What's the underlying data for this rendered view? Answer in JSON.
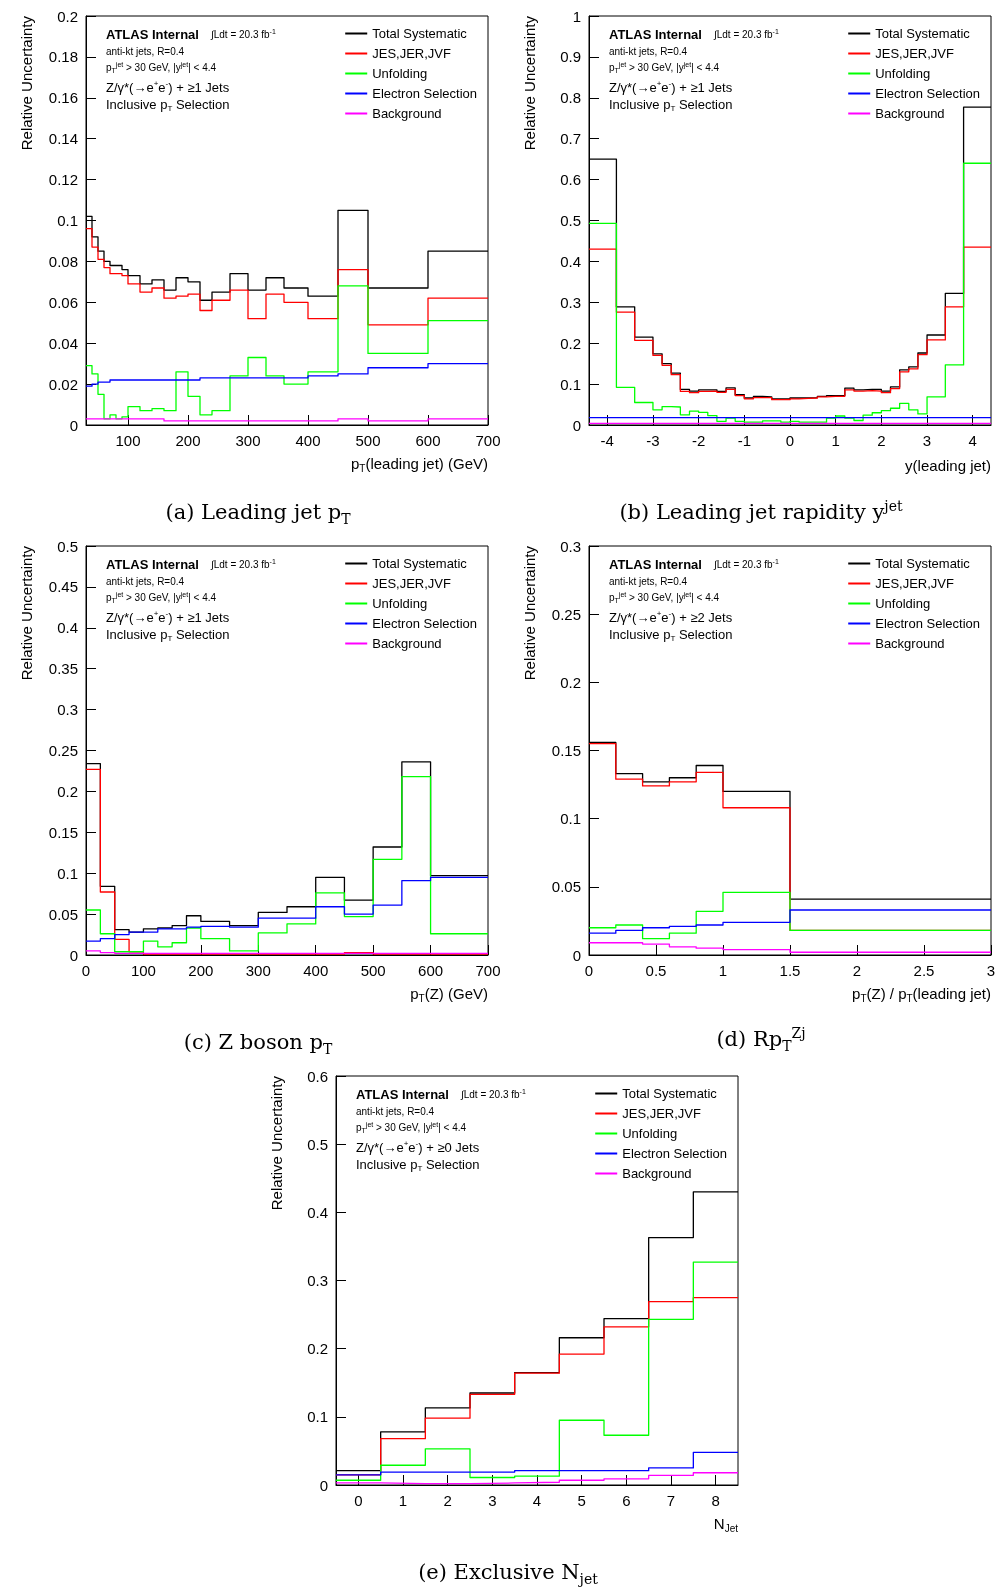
{
  "chart_data": [
    {
      "type": "histogram",
      "title": "(a) Leading jet p$_{T}$",
      "xlabel": "p$_{T}$(leading jet) (GeV)",
      "ylabel": "Relative Uncertainty",
      "legend": "top right",
      "annotations": [
        "ATLAS Internal",
        "∫Ldt = 20.3 fb$^{-1}$",
        "anti-kt jets, R=0.4",
        "p$_{T}$$^{jet}$ > 30 GeV, |y$^{jet}$| < 4.4",
        "Z/γ*(→e$^{+}$e$^{-}$) + ≥1 Jets",
        "Inclusive p$_{T}$ Selection"
      ],
      "bins": [
        30,
        40,
        50,
        60,
        70,
        80,
        90,
        100,
        120,
        140,
        160,
        180,
        200,
        220,
        240,
        270,
        300,
        330,
        360,
        400,
        450,
        500,
        600,
        700
      ],
      "series": [
        {
          "name": "Total Systematic",
          "color": "#000000",
          "values": [
            0.102,
            0.092,
            0.085,
            0.08,
            0.078,
            0.078,
            0.076,
            0.073,
            0.069,
            0.071,
            0.066,
            0.072,
            0.07,
            0.061,
            0.065,
            0.074,
            0.066,
            0.072,
            0.067,
            0.063,
            0.105,
            0.067,
            0.085
          ]
        },
        {
          "name": "JES,JER,JVF",
          "color": "#ff0000",
          "values": [
            0.096,
            0.087,
            0.081,
            0.077,
            0.074,
            0.074,
            0.073,
            0.069,
            0.065,
            0.067,
            0.062,
            0.063,
            0.064,
            0.056,
            0.061,
            0.066,
            0.052,
            0.064,
            0.06,
            0.052,
            0.076,
            0.049,
            0.062
          ]
        },
        {
          "name": "Unfolding",
          "color": "#00ff00",
          "values": [
            0.029,
            0.025,
            0.015,
            0.003,
            0.005,
            0.003,
            0.004,
            0.009,
            0.007,
            0.008,
            0.007,
            0.026,
            0.014,
            0.005,
            0.007,
            0.024,
            0.033,
            0.024,
            0.02,
            0.026,
            0.068,
            0.035,
            0.051
          ]
        },
        {
          "name": "Electron Selection",
          "color": "#0000ff",
          "values": [
            0.019,
            0.02,
            0.021,
            0.021,
            0.022,
            0.022,
            0.022,
            0.022,
            0.022,
            0.022,
            0.022,
            0.022,
            0.022,
            0.023,
            0.023,
            0.023,
            0.023,
            0.023,
            0.023,
            0.024,
            0.025,
            0.028,
            0.03
          ]
        },
        {
          "name": "Background",
          "color": "#ff00ff",
          "values": [
            0.003,
            0.003,
            0.003,
            0.003,
            0.003,
            0.003,
            0.003,
            0.003,
            0.003,
            0.003,
            0.002,
            0.002,
            0.002,
            0.002,
            0.002,
            0.002,
            0.002,
            0.002,
            0.002,
            0.002,
            0.003,
            0.002,
            0.003
          ]
        }
      ],
      "xlim": [
        30,
        700
      ],
      "xticks": [
        100,
        200,
        300,
        400,
        500,
        600,
        700
      ],
      "ylim": [
        0,
        0.2
      ],
      "yticks": [
        0,
        0.02,
        0.04,
        0.06,
        0.08,
        0.1,
        0.12,
        0.14,
        0.16,
        0.18,
        0.2
      ]
    },
    {
      "type": "histogram",
      "title": "(b) Leading jet rapidity y$^{jet}$",
      "xlabel": "y(leading jet)",
      "ylabel": "Relative Uncertainty",
      "legend": "top right",
      "annotations": [
        "ATLAS Internal",
        "∫Ldt = 20.3 fb$^{-1}$",
        "anti-kt jets, R=0.4",
        "p$_{T}$$^{jet}$ > 30 GeV, |y$^{jet}$| < 4.4",
        "Z/γ*(→e$^{+}$e$^{-}$) + ≥1 Jets",
        "Inclusive p$_{T}$ Selection"
      ],
      "bins": [
        -4.4,
        -3.8,
        -3.4,
        -3.0,
        -2.8,
        -2.6,
        -2.4,
        -2.2,
        -2.0,
        -1.8,
        -1.6,
        -1.4,
        -1.2,
        -1.0,
        -0.8,
        -0.6,
        -0.4,
        -0.2,
        0,
        0.2,
        0.4,
        0.6,
        0.8,
        1.0,
        1.2,
        1.4,
        1.6,
        1.8,
        2.0,
        2.2,
        2.4,
        2.6,
        2.8,
        3.0,
        3.4,
        3.8,
        4.4
      ],
      "series": [
        {
          "name": "Total Systematic",
          "color": "#000000",
          "values": [
            0.65,
            0.289,
            0.215,
            0.174,
            0.15,
            0.127,
            0.087,
            0.083,
            0.086,
            0.086,
            0.082,
            0.091,
            0.074,
            0.066,
            0.07,
            0.069,
            0.064,
            0.064,
            0.066,
            0.066,
            0.067,
            0.07,
            0.072,
            0.072,
            0.09,
            0.086,
            0.087,
            0.087,
            0.083,
            0.093,
            0.135,
            0.142,
            0.176,
            0.22,
            0.322,
            0.777
          ]
        },
        {
          "name": "JES,JER,JVF",
          "color": "#ff0000",
          "values": [
            0.43,
            0.276,
            0.207,
            0.17,
            0.146,
            0.123,
            0.082,
            0.079,
            0.082,
            0.083,
            0.08,
            0.087,
            0.072,
            0.064,
            0.067,
            0.067,
            0.062,
            0.062,
            0.064,
            0.065,
            0.066,
            0.069,
            0.07,
            0.07,
            0.086,
            0.083,
            0.084,
            0.083,
            0.079,
            0.089,
            0.13,
            0.137,
            0.172,
            0.208,
            0.289,
            0.435
          ]
        },
        {
          "name": "Unfolding",
          "color": "#00ff00",
          "values": [
            0.493,
            0.092,
            0.055,
            0.037,
            0.045,
            0.044,
            0.025,
            0.034,
            0.031,
            0.023,
            0.009,
            0.017,
            0.009,
            0.007,
            0.007,
            0.01,
            0.01,
            0.007,
            0.009,
            0.007,
            0.007,
            0.007,
            0.017,
            0.022,
            0.017,
            0.011,
            0.024,
            0.03,
            0.035,
            0.041,
            0.053,
            0.037,
            0.027,
            0.069,
            0.147,
            0.64
          ]
        },
        {
          "name": "Electron Selection",
          "color": "#0000ff",
          "values": [
            0.018,
            0.018,
            0.018,
            0.018,
            0.018,
            0.018,
            0.018,
            0.018,
            0.018,
            0.018,
            0.018,
            0.018,
            0.018,
            0.018,
            0.018,
            0.018,
            0.018,
            0.018,
            0.018,
            0.018,
            0.018,
            0.018,
            0.018,
            0.018,
            0.018,
            0.018,
            0.018,
            0.018,
            0.018,
            0.018,
            0.018,
            0.018,
            0.018,
            0.018,
            0.018,
            0.018
          ]
        },
        {
          "name": "Background",
          "color": "#ff00ff",
          "values": [
            0.004,
            0.004,
            0.004,
            0.004,
            0.004,
            0.004,
            0.004,
            0.004,
            0.004,
            0.004,
            0.004,
            0.004,
            0.004,
            0.004,
            0.004,
            0.004,
            0.004,
            0.004,
            0.004,
            0.004,
            0.004,
            0.004,
            0.004,
            0.004,
            0.004,
            0.004,
            0.004,
            0.004,
            0.004,
            0.004,
            0.004,
            0.004,
            0.004,
            0.004,
            0.004,
            0.004
          ]
        }
      ],
      "xlim": [
        -4.4,
        4.4
      ],
      "xticks": [
        -4,
        -3,
        -2,
        -1,
        0,
        1,
        2,
        3,
        4
      ],
      "ylim": [
        0,
        1
      ],
      "yticks": [
        0,
        0.1,
        0.2,
        0.3,
        0.4,
        0.5,
        0.6,
        0.7,
        0.8,
        0.9,
        1
      ]
    },
    {
      "type": "histogram",
      "title": "(c) Z boson p$_{T}$",
      "xlabel": "p$_{T}$(Z) (GeV)",
      "ylabel": "Relative Uncertainty",
      "legend": "top right",
      "annotations": [
        "ATLAS Internal",
        "∫Ldt = 20.3 fb$^{-1}$",
        "anti-kt jets, R=0.4",
        "p$_{T}$$^{jet}$ > 30 GeV, |y$^{jet}$| < 4.4",
        "Z/γ*(→e$^{+}$e$^{-}$) + ≥1 Jets",
        "Inclusive p$_{T}$ Selection"
      ],
      "bins": [
        0,
        25,
        50,
        75,
        100,
        125,
        150,
        175,
        200,
        250,
        300,
        350,
        400,
        450,
        500,
        550,
        600,
        700
      ],
      "series": [
        {
          "name": "Total Systematic",
          "color": "#000000",
          "values": [
            0.234,
            0.084,
            0.031,
            0.028,
            0.032,
            0.033,
            0.036,
            0.048,
            0.041,
            0.036,
            0.052,
            0.059,
            0.095,
            0.067,
            0.132,
            0.236,
            0.097
          ]
        },
        {
          "name": "JES,JER,JVF",
          "color": "#ff0000",
          "values": [
            0.227,
            0.077,
            0.019,
            0.004,
            0.001,
            0.001,
            0.001,
            0.001,
            0.001,
            0.001,
            0.001,
            0.001,
            0.001,
            0.003,
            0.001,
            0.001,
            0.001
          ]
        },
        {
          "name": "Unfolding",
          "color": "#00ff00",
          "values": [
            0.055,
            0.026,
            0.004,
            0.004,
            0.017,
            0.01,
            0.015,
            0.033,
            0.02,
            0.005,
            0.027,
            0.038,
            0.076,
            0.047,
            0.117,
            0.218,
            0.026
          ]
        },
        {
          "name": "Electron Selection",
          "color": "#0000ff",
          "values": [
            0.017,
            0.02,
            0.025,
            0.028,
            0.028,
            0.032,
            0.032,
            0.034,
            0.035,
            0.034,
            0.045,
            0.045,
            0.059,
            0.05,
            0.061,
            0.091,
            0.095
          ]
        },
        {
          "name": "Background",
          "color": "#ff00ff",
          "values": [
            0.005,
            0.003,
            0.002,
            0.002,
            0.002,
            0.002,
            0.002,
            0.002,
            0.002,
            0.002,
            0.002,
            0.002,
            0.002,
            0.002,
            0.002,
            0.002,
            0.002
          ]
        }
      ],
      "xlim": [
        0,
        700
      ],
      "xticks": [
        0,
        100,
        200,
        300,
        400,
        500,
        600,
        700
      ],
      "ylim": [
        0,
        0.5
      ],
      "yticks": [
        0,
        0.05,
        0.1,
        0.15,
        0.2,
        0.25,
        0.3,
        0.35,
        0.4,
        0.45,
        0.5
      ]
    },
    {
      "type": "histogram",
      "title": "(d) Rp$_{T}$$^{Zj}$",
      "xlabel": "p$_{T}$(Z) / p$_{T}$(leading jet)",
      "ylabel": "Relative Uncertainty",
      "legend": "top right",
      "annotations": [
        "ATLAS Internal",
        "∫Ldt = 20.3 fb$^{-1}$",
        "anti-kt jets, R=0.4",
        "p$_{T}$$^{jet}$ > 30 GeV, |y$^{jet}$| < 4.4",
        "Z/γ*(→e$^{+}$e$^{-}$) + ≥2 Jets",
        "Inclusive p$_{T}$ Selection"
      ],
      "bins": [
        0,
        0.2,
        0.4,
        0.6,
        0.8,
        1,
        1.5,
        3
      ],
      "series": [
        {
          "name": "Total Systematic",
          "color": "#000000",
          "values": [
            0.156,
            0.133,
            0.127,
            0.13,
            0.139,
            0.12,
            0.041
          ]
        },
        {
          "name": "JES,JER,JVF",
          "color": "#ff0000",
          "values": [
            0.155,
            0.129,
            0.124,
            0.127,
            0.134,
            0.108,
            0.018
          ]
        },
        {
          "name": "Unfolding",
          "color": "#00ff00",
          "values": [
            0.02,
            0.022,
            0.012,
            0.016,
            0.032,
            0.046,
            0.018
          ]
        },
        {
          "name": "Electron Selection",
          "color": "#0000ff",
          "values": [
            0.016,
            0.018,
            0.02,
            0.021,
            0.022,
            0.024,
            0.033
          ]
        },
        {
          "name": "Background",
          "color": "#ff00ff",
          "values": [
            0.009,
            0.009,
            0.008,
            0.006,
            0.005,
            0.004,
            0.002
          ]
        }
      ],
      "xlim": [
        0,
        3
      ],
      "xticks": [
        0,
        0.5,
        1,
        1.5,
        2,
        2.5,
        3
      ],
      "ylim": [
        0,
        0.3
      ],
      "yticks": [
        0,
        0.05,
        0.1,
        0.15,
        0.2,
        0.25,
        0.3
      ]
    },
    {
      "type": "histogram",
      "title": "(e) Exclusive N$_{jet}$",
      "xlabel": "N$_{Jet}$",
      "ylabel": "Relative Uncertainty",
      "legend": "top right",
      "annotations": [
        "ATLAS Internal",
        "∫Ldt = 20.3 fb$^{-1}$",
        "anti-kt jets, R=0.4",
        "p$_{T}$$^{jet}$ > 30 GeV, |y$^{jet}$| < 4.4",
        "Z/γ*(→e$^{+}$e$^{-}$) + ≥0 Jets",
        "Inclusive p$_{T}$ Selection"
      ],
      "bins": [
        -0.5,
        0.5,
        1.5,
        2.5,
        3.5,
        4.5,
        5.5,
        6.5,
        7.5,
        8.5
      ],
      "series": [
        {
          "name": "Total Systematic",
          "color": "#000000",
          "values": [
            0.021,
            0.078,
            0.113,
            0.135,
            0.165,
            0.216,
            0.244,
            0.363,
            0.43
          ]
        },
        {
          "name": "JES,JER,JVF",
          "color": "#ff0000",
          "values": [
            0.015,
            0.068,
            0.098,
            0.133,
            0.164,
            0.192,
            0.232,
            0.269,
            0.275
          ]
        },
        {
          "name": "Unfolding",
          "color": "#00ff00",
          "values": [
            0.007,
            0.029,
            0.053,
            0.011,
            0.013,
            0.095,
            0.073,
            0.243,
            0.327
          ]
        },
        {
          "name": "Electron Selection",
          "color": "#0000ff",
          "values": [
            0.015,
            0.019,
            0.019,
            0.019,
            0.021,
            0.021,
            0.021,
            0.025,
            0.048
          ]
        },
        {
          "name": "Background",
          "color": "#ff00ff",
          "values": [
            0.003,
            0.002,
            0.002,
            0.003,
            0.004,
            0.007,
            0.009,
            0.014,
            0.018
          ]
        }
      ],
      "xlim": [
        -0.5,
        8.5
      ],
      "xticks": [
        0,
        1,
        2,
        3,
        4,
        5,
        6,
        7,
        8
      ],
      "ylim": [
        0,
        0.6
      ],
      "yticks": [
        0,
        0.1,
        0.2,
        0.3,
        0.4,
        0.5,
        0.6
      ]
    }
  ]
}
